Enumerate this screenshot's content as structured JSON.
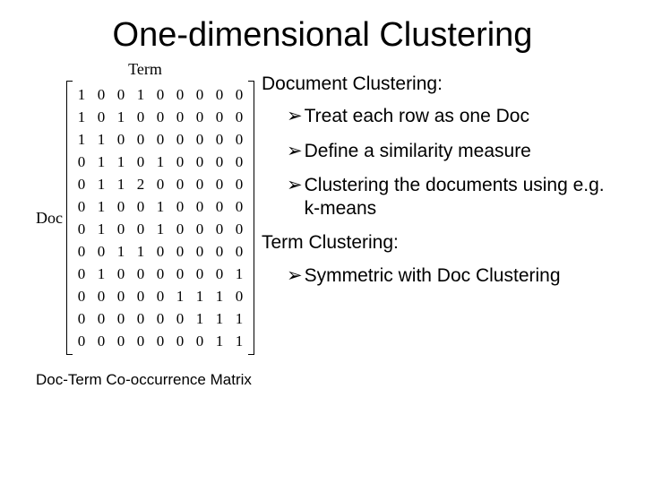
{
  "title": "One-dimensional Clustering",
  "matrix": {
    "col_label": "Term",
    "row_label": "Doc",
    "rows": [
      [
        1,
        0,
        0,
        1,
        0,
        0,
        0,
        0,
        0
      ],
      [
        1,
        0,
        1,
        0,
        0,
        0,
        0,
        0,
        0
      ],
      [
        1,
        1,
        0,
        0,
        0,
        0,
        0,
        0,
        0
      ],
      [
        0,
        1,
        1,
        0,
        1,
        0,
        0,
        0,
        0
      ],
      [
        0,
        1,
        1,
        2,
        0,
        0,
        0,
        0,
        0
      ],
      [
        0,
        1,
        0,
        0,
        1,
        0,
        0,
        0,
        0
      ],
      [
        0,
        1,
        0,
        0,
        1,
        0,
        0,
        0,
        0
      ],
      [
        0,
        0,
        1,
        1,
        0,
        0,
        0,
        0,
        0
      ],
      [
        0,
        1,
        0,
        0,
        0,
        0,
        0,
        0,
        1
      ],
      [
        0,
        0,
        0,
        0,
        0,
        1,
        1,
        1,
        0
      ],
      [
        0,
        0,
        0,
        0,
        0,
        0,
        1,
        1,
        1
      ],
      [
        0,
        0,
        0,
        0,
        0,
        0,
        0,
        1,
        1
      ]
    ],
    "caption": "Doc-Term Co-occurrence Matrix",
    "font_family": "Times New Roman",
    "cell_font_size_pt": 13,
    "label_font_size_pt": 13
  },
  "bullet_marker": "➢",
  "sections": [
    {
      "heading": "Document Clustering:",
      "bullets": [
        "Treat each row as one Doc",
        "Define a similarity measure",
        "Clustering the documents using e.g. k-means"
      ]
    },
    {
      "heading": "Term Clustering:",
      "bullets": [
        "Symmetric with Doc Clustering"
      ]
    }
  ],
  "style": {
    "title_font_size_pt": 29,
    "body_font_size_pt": 16,
    "caption_font_size_pt": 13,
    "background_color": "#ffffff",
    "text_color": "#000000",
    "font_family": "Arial"
  }
}
